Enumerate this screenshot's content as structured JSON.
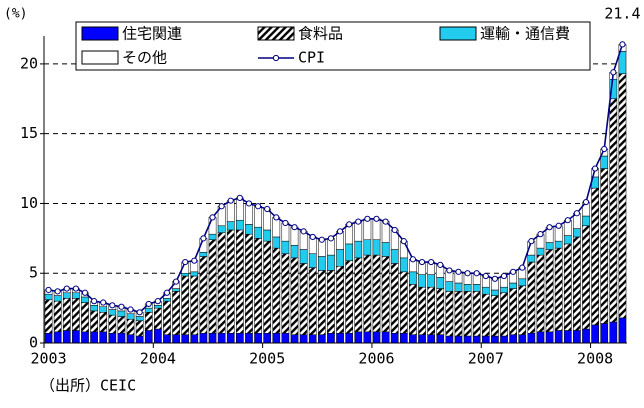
{
  "chart_data": {
    "type": "bar",
    "y_unit": "(%)",
    "source": "（出所）CEIC",
    "categories": [
      "2003",
      null,
      null,
      null,
      null,
      null,
      null,
      null,
      null,
      null,
      null,
      null,
      "2004",
      null,
      null,
      null,
      null,
      null,
      null,
      null,
      null,
      null,
      null,
      null,
      "2005",
      null,
      null,
      null,
      null,
      null,
      null,
      null,
      null,
      null,
      null,
      null,
      "2006",
      null,
      null,
      null,
      null,
      null,
      null,
      null,
      null,
      null,
      null,
      null,
      "2007",
      null,
      null,
      null,
      null,
      null,
      null,
      null,
      null,
      null,
      null,
      null,
      "2008",
      null,
      null,
      null
    ],
    "series": [
      {
        "name": "住宅関連",
        "color": "#0000ff",
        "values": [
          0.7,
          0.8,
          0.9,
          0.9,
          0.8,
          0.8,
          0.8,
          0.7,
          0.7,
          0.6,
          0.5,
          0.9,
          1.0,
          0.6,
          0.6,
          0.6,
          0.6,
          0.7,
          0.7,
          0.7,
          0.7,
          0.7,
          0.7,
          0.7,
          0.7,
          0.7,
          0.7,
          0.6,
          0.6,
          0.6,
          0.6,
          0.7,
          0.7,
          0.7,
          0.8,
          0.8,
          0.8,
          0.8,
          0.7,
          0.7,
          0.6,
          0.6,
          0.6,
          0.6,
          0.5,
          0.5,
          0.5,
          0.5,
          0.5,
          0.5,
          0.5,
          0.6,
          0.6,
          0.7,
          0.8,
          0.8,
          0.9,
          0.9,
          0.9,
          1.0,
          1.3,
          1.4,
          1.5,
          1.8
        ]
      },
      {
        "name": "食料品",
        "color": "hatch",
        "values": [
          2.4,
          2.2,
          2.3,
          2.3,
          2.1,
          1.5,
          1.4,
          1.3,
          1.2,
          1.1,
          1.1,
          1.3,
          1.5,
          2.4,
          3.1,
          4.2,
          4.2,
          5.5,
          6.7,
          7.2,
          7.4,
          7.4,
          7.1,
          6.8,
          6.6,
          6.1,
          5.7,
          5.5,
          5.1,
          4.8,
          4.6,
          4.5,
          4.8,
          5.2,
          5.3,
          5.5,
          5.5,
          5.4,
          5.0,
          4.4,
          3.6,
          3.4,
          3.4,
          3.3,
          3.2,
          3.2,
          3.2,
          3.2,
          3.0,
          2.9,
          3.1,
          3.3,
          3.5,
          5.1,
          5.5,
          5.9,
          5.9,
          6.2,
          6.7,
          7.4,
          9.8,
          11.1,
          16.0,
          17.5
        ]
      },
      {
        "name": "運輸・通信費",
        "color": "#22ccee",
        "values": [
          0.4,
          0.4,
          0.4,
          0.4,
          0.4,
          0.4,
          0.4,
          0.4,
          0.4,
          0.4,
          0.3,
          0.3,
          0.2,
          0.2,
          0.2,
          0.2,
          0.3,
          0.3,
          0.4,
          0.5,
          0.6,
          0.7,
          0.7,
          0.8,
          0.8,
          0.8,
          0.9,
          0.9,
          1.0,
          1.0,
          1.0,
          1.1,
          1.2,
          1.2,
          1.2,
          1.1,
          1.1,
          1.0,
          1.0,
          1.0,
          0.9,
          0.9,
          0.9,
          0.8,
          0.7,
          0.6,
          0.5,
          0.5,
          0.5,
          0.4,
          0.4,
          0.4,
          0.5,
          0.5,
          0.5,
          0.5,
          0.5,
          0.6,
          0.6,
          0.7,
          0.8,
          0.9,
          1.4,
          1.6
        ]
      },
      {
        "name": "その他",
        "color": "#ffffff",
        "values": [
          0.3,
          0.3,
          0.3,
          0.3,
          0.3,
          0.3,
          0.3,
          0.3,
          0.3,
          0.3,
          0.3,
          0.3,
          0.3,
          0.4,
          0.5,
          0.8,
          0.8,
          1.0,
          1.2,
          1.4,
          1.5,
          1.6,
          1.5,
          1.5,
          1.5,
          1.4,
          1.3,
          1.3,
          1.3,
          1.2,
          1.2,
          1.2,
          1.3,
          1.4,
          1.4,
          1.5,
          1.5,
          1.5,
          1.4,
          1.2,
          0.9,
          0.9,
          0.9,
          0.9,
          0.8,
          0.8,
          0.8,
          0.8,
          0.8,
          0.8,
          0.8,
          0.8,
          0.8,
          1.0,
          1.0,
          1.1,
          1.1,
          1.1,
          1.1,
          1.0,
          0.6,
          0.5,
          0.5,
          0.5
        ]
      },
      {
        "name": "CPI",
        "color": "#000080",
        "type": "line",
        "values": [
          3.8,
          3.7,
          3.9,
          3.9,
          3.6,
          3.0,
          2.9,
          2.7,
          2.6,
          2.4,
          2.2,
          2.8,
          3.0,
          3.6,
          4.4,
          5.8,
          5.9,
          7.5,
          9.0,
          9.8,
          10.2,
          10.4,
          10.0,
          9.8,
          9.6,
          9.0,
          8.6,
          8.3,
          8.0,
          7.6,
          7.4,
          7.5,
          8.0,
          8.5,
          8.7,
          8.9,
          8.9,
          8.7,
          8.1,
          7.3,
          6.0,
          5.8,
          5.8,
          5.6,
          5.2,
          5.1,
          5.0,
          5.0,
          4.8,
          4.6,
          4.8,
          5.1,
          5.4,
          7.3,
          7.8,
          8.3,
          8.4,
          8.8,
          9.3,
          10.1,
          12.5,
          13.9,
          19.4,
          21.4
        ]
      }
    ],
    "ylim": [
      0,
      22
    ],
    "yticks": [
      0,
      5,
      10,
      15,
      20
    ],
    "grid": true,
    "stacked": true,
    "legend": "top"
  }
}
